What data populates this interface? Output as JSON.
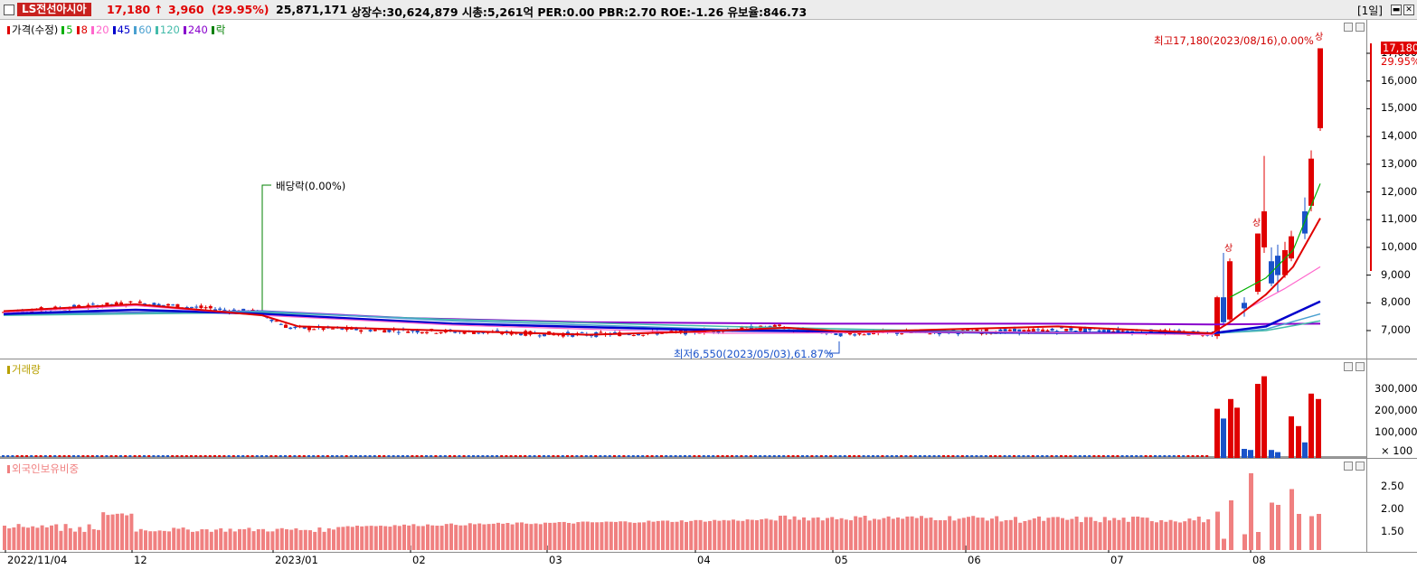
{
  "header": {
    "stock_name": "LS전선아시아",
    "price": "17,180",
    "change_arrow": "↑",
    "change": "3,960",
    "change_pct": "(29.95%)",
    "volume": "25,871,171",
    "stats": "상장수:30,624,879 시총:5,261억 PER:0.00 PBR:2.70 ROE:-1.26 유보율:846.73",
    "period": "[1일]"
  },
  "price_pane": {
    "legend": {
      "price_label": "가격(수정)",
      "ma": [
        {
          "label": "5",
          "color": "#00b000"
        },
        {
          "label": "8",
          "color": "#e00000"
        },
        {
          "label": "20",
          "color": "#ff66cc"
        },
        {
          "label": "45",
          "color": "#0000cc"
        },
        {
          "label": "60",
          "color": "#4aa0d0"
        },
        {
          "label": "120",
          "color": "#44bbaa"
        },
        {
          "label": "240",
          "color": "#8800cc"
        },
        {
          "label": "락",
          "color": "#008000"
        }
      ]
    },
    "y_ticks": [
      "17,000",
      "16,000",
      "15,000",
      "14,000",
      "13,000",
      "12,000",
      "11,000",
      "10,000",
      "9,000",
      "8,000",
      "7,000"
    ],
    "current_price_tag": "17,180",
    "current_pct_tag": "29.95%",
    "high_annotation": "최고17,180(2023/08/16),0.00%",
    "low_annotation": "최저6,550(2023/05/03),61.87%",
    "dividend_annotation": "배당락(0.00%)",
    "limit_up_marks": [
      "상",
      "상",
      "상"
    ]
  },
  "volume_pane": {
    "legend": "거래량",
    "y_ticks": [
      "300,000",
      "200,000",
      "100,000"
    ],
    "unit": "× 100"
  },
  "foreign_pane": {
    "legend": "외국인보유비중",
    "y_ticks": [
      "2.50",
      "2.00",
      "1.50"
    ]
  },
  "x_axis": {
    "dates": [
      "2022/11/04",
      "12",
      "2023/01",
      "02",
      "03",
      "04",
      "05",
      "06",
      "07",
      "08"
    ]
  },
  "colors": {
    "up": "#e00000",
    "down": "#1a52c9",
    "foreign_bar": "#f08080",
    "badge": "#c8211e"
  },
  "chart_data": {
    "type": "candlestick",
    "y_unit": "KRW",
    "ylim": [
      6500,
      17500
    ],
    "candles_recent": [
      {
        "open": 6800,
        "close": 8200,
        "high": 8250,
        "low": 6700
      },
      {
        "open": 8200,
        "close": 7300,
        "high": 9800,
        "low": 7200
      },
      {
        "open": 7400,
        "close": 9500,
        "high": 9600,
        "low": 7350
      },
      {
        "open": 8000,
        "close": 7800,
        "high": 8200,
        "low": 7500
      },
      {
        "open": 8400,
        "close": 10500,
        "high": 10500,
        "low": 8300
      },
      {
        "open": 10000,
        "close": 11300,
        "high": 13300,
        "low": 9800
      },
      {
        "open": 9500,
        "close": 8700,
        "high": 10000,
        "low": 8600
      },
      {
        "open": 9700,
        "close": 9000,
        "high": 10100,
        "low": 8400
      },
      {
        "open": 9000,
        "close": 9900,
        "high": 10200,
        "low": 8900
      },
      {
        "open": 9600,
        "close": 10400,
        "high": 10600,
        "low": 9500
      },
      {
        "open": 11300,
        "close": 10500,
        "high": 11800,
        "low": 10300
      },
      {
        "open": 11500,
        "close": 13200,
        "high": 13500,
        "low": 11300
      },
      {
        "open": 14300,
        "close": 17180,
        "high": 17180,
        "low": 14200
      }
    ],
    "volume_recent_x100": [
      210000,
      165000,
      255000,
      215000,
      25000,
      20000,
      325000,
      360000,
      20000,
      10000,
      175000,
      130000,
      55000,
      280000,
      255000
    ],
    "foreign_ratio_recent": [
      1.95,
      1.35,
      2.2,
      1.45,
      2.8,
      1.5,
      2.15,
      2.1,
      2.45,
      1.9,
      1.85,
      1.9
    ]
  }
}
